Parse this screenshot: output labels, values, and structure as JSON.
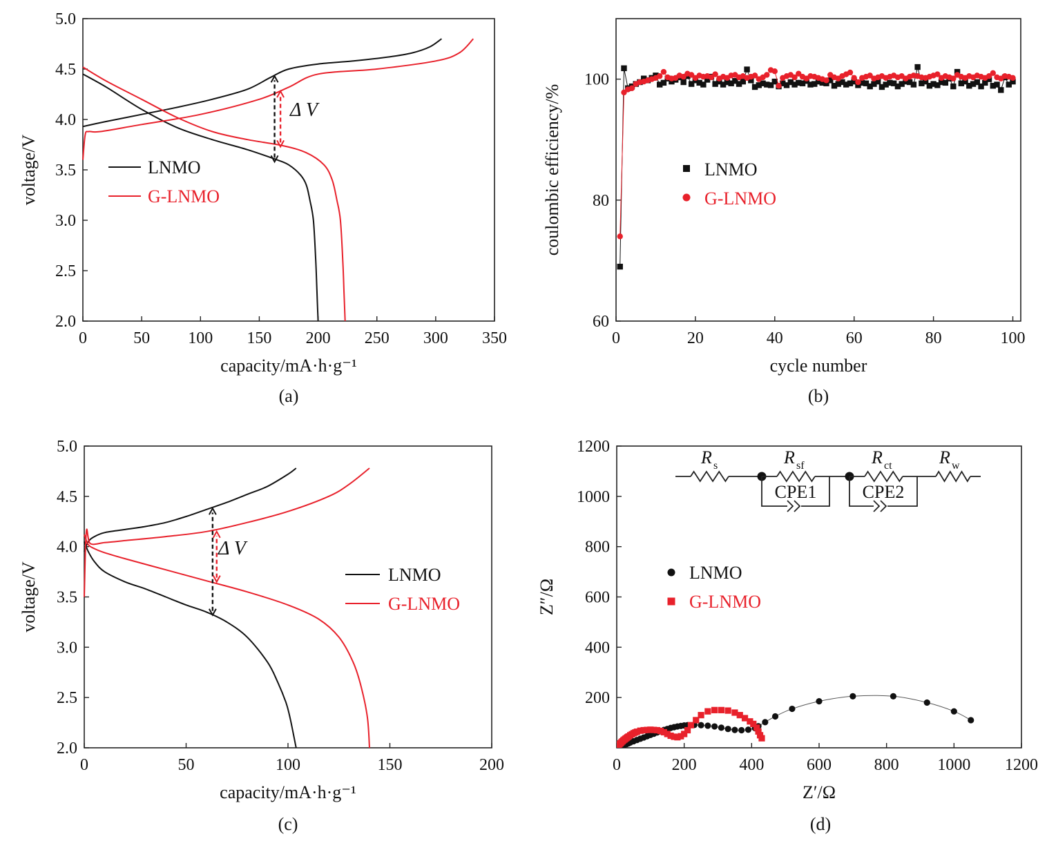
{
  "colors": {
    "lnmo": "#111111",
    "glnmo": "#e8212b",
    "axis": "#222222"
  },
  "chart_data": [
    {
      "type": "line",
      "panel": "(a)",
      "xlabel": "capacity/mA·h·g⁻¹",
      "ylabel": "voltage/V",
      "xlim": [
        0,
        350
      ],
      "ylim": [
        2.0,
        5.0
      ],
      "xticks": [
        0,
        50,
        100,
        150,
        200,
        250,
        300,
        350
      ],
      "yticks": [
        2.0,
        2.5,
        3.0,
        3.5,
        4.0,
        4.5,
        5.0
      ],
      "xtick_labels": [
        "0",
        "50",
        "100",
        "150",
        "200",
        "250",
        "300",
        "350"
      ],
      "ytick_labels": [
        "2.0",
        "2.5",
        "3.0",
        "3.5",
        "4.0",
        "4.5",
        "5.0"
      ],
      "legend": [
        "LNMO",
        "G-LNMO"
      ],
      "annotation": "Δ V",
      "series": [
        {
          "name": "LNMO (charge)",
          "color_key": "lnmo",
          "x": [
            0,
            20,
            50,
            80,
            110,
            140,
            160,
            175,
            200,
            230,
            260,
            280,
            295,
            305
          ],
          "y": [
            3.93,
            3.98,
            4.05,
            4.12,
            4.2,
            4.3,
            4.42,
            4.5,
            4.55,
            4.58,
            4.62,
            4.66,
            4.72,
            4.8
          ]
        },
        {
          "name": "LNMO (discharge)",
          "color_key": "lnmo",
          "x": [
            0,
            20,
            50,
            80,
            110,
            140,
            165,
            175,
            185,
            190,
            193,
            196,
            198,
            199,
            200
          ],
          "y": [
            4.45,
            4.32,
            4.1,
            3.92,
            3.8,
            3.7,
            3.6,
            3.55,
            3.45,
            3.35,
            3.2,
            3.0,
            2.6,
            2.3,
            2.0
          ]
        },
        {
          "name": "G-LNMO (charge)",
          "color_key": "glnmo",
          "x": [
            0,
            2,
            5,
            15,
            50,
            100,
            150,
            175,
            200,
            250,
            300,
            320,
            332
          ],
          "y": [
            3.6,
            3.85,
            3.88,
            3.88,
            3.95,
            4.05,
            4.2,
            4.32,
            4.45,
            4.5,
            4.58,
            4.66,
            4.8
          ]
        },
        {
          "name": "G-LNMO (discharge)",
          "color_key": "glnmo",
          "x": [
            0,
            20,
            50,
            80,
            110,
            140,
            170,
            190,
            205,
            212,
            216,
            219,
            221,
            222,
            223
          ],
          "y": [
            4.52,
            4.38,
            4.2,
            4.02,
            3.88,
            3.8,
            3.74,
            3.67,
            3.55,
            3.4,
            3.2,
            3.0,
            2.6,
            2.3,
            2.0
          ]
        }
      ],
      "arrows": [
        {
          "color_key": "lnmo",
          "x": 163,
          "y1": 3.58,
          "y2": 4.43
        },
        {
          "color_key": "glnmo",
          "x": 168,
          "y1": 3.73,
          "y2": 4.28
        }
      ]
    },
    {
      "type": "scatter",
      "panel": "(b)",
      "xlabel": "cycle number",
      "ylabel": "coulombic efficiency/%",
      "xlim": [
        0,
        102
      ],
      "ylim": [
        60,
        110
      ],
      "xticks": [
        0,
        20,
        40,
        60,
        80,
        100
      ],
      "yticks": [
        60,
        80,
        100
      ],
      "xtick_labels": [
        "0",
        "20",
        "40",
        "60",
        "80",
        "100"
      ],
      "ytick_labels": [
        "60",
        "80",
        "100"
      ],
      "legend": [
        "LNMO",
        "G-LNMO"
      ],
      "series": [
        {
          "name": "LNMO",
          "marker": "square",
          "color_key": "lnmo",
          "x": [
            1,
            2,
            3,
            4,
            5,
            6,
            7,
            8,
            9,
            10,
            11,
            12,
            13,
            14,
            15,
            16,
            17,
            18,
            19,
            20,
            21,
            22,
            23,
            24,
            25,
            26,
            27,
            28,
            29,
            30,
            31,
            32,
            33,
            34,
            35,
            36,
            37,
            38,
            39,
            40,
            41,
            42,
            43,
            44,
            45,
            46,
            47,
            48,
            49,
            50,
            51,
            52,
            53,
            54,
            55,
            56,
            57,
            58,
            59,
            60,
            61,
            62,
            63,
            64,
            65,
            66,
            67,
            68,
            69,
            70,
            71,
            72,
            73,
            74,
            75,
            76,
            77,
            78,
            79,
            80,
            81,
            82,
            83,
            84,
            85,
            86,
            87,
            88,
            89,
            90,
            91,
            92,
            93,
            94,
            95,
            96,
            97,
            98,
            99,
            100
          ],
          "y": [
            69,
            101.8,
            98.5,
            98.8,
            99.2,
            99.5,
            100.1,
            99.8,
            100.2,
            100.6,
            99.1,
            99.4,
            100.1,
            99.6,
            99.9,
            100.3,
            99.5,
            100.5,
            99.2,
            99.8,
            99.4,
            99.1,
            99.9,
            100.4,
            99.2,
            99.6,
            99.1,
            99.5,
            99.3,
            99.7,
            99.2,
            99.6,
            101.6,
            99.8,
            98.7,
            99,
            99.3,
            99.1,
            99,
            99.6,
            98.8,
            99.3,
            99,
            99.5,
            99.1,
            99.4,
            99.3,
            99.7,
            99.1,
            99.2,
            99.6,
            99.4,
            99.3,
            99.8,
            98.9,
            99.2,
            99.5,
            99.1,
            99.3,
            99.6,
            99,
            99.4,
            99.3,
            98.8,
            99.2,
            99.6,
            98.7,
            99.1,
            99.4,
            99.3,
            98.8,
            99.2,
            99.6,
            99.5,
            99.1,
            102,
            99.3,
            99.6,
            98.9,
            99.2,
            99,
            99.5,
            99.4,
            100.1,
            98.8,
            101.2,
            99.3,
            99.6,
            98.9,
            99.2,
            99.5,
            98.8,
            99.4,
            100,
            98.9,
            99.1,
            98.2,
            100.3,
            99.1,
            99.6
          ]
        },
        {
          "name": "G-LNMO",
          "marker": "circle",
          "color_key": "glnmo",
          "x": [
            1,
            2,
            3,
            4,
            5,
            6,
            7,
            8,
            9,
            10,
            11,
            12,
            13,
            14,
            15,
            16,
            17,
            18,
            19,
            20,
            21,
            22,
            23,
            24,
            25,
            26,
            27,
            28,
            29,
            30,
            31,
            32,
            33,
            34,
            35,
            36,
            37,
            38,
            39,
            40,
            41,
            42,
            43,
            44,
            45,
            46,
            47,
            48,
            49,
            50,
            51,
            52,
            53,
            54,
            55,
            56,
            57,
            58,
            59,
            60,
            61,
            62,
            63,
            64,
            65,
            66,
            67,
            68,
            69,
            70,
            71,
            72,
            73,
            74,
            75,
            76,
            77,
            78,
            79,
            80,
            81,
            82,
            83,
            84,
            85,
            86,
            87,
            88,
            89,
            90,
            91,
            92,
            93,
            94,
            95,
            96,
            97,
            98,
            99,
            100
          ],
          "y": [
            74,
            97.8,
            98.3,
            98.5,
            99.2,
            99.5,
            99.6,
            99.8,
            100,
            100.2,
            100.5,
            101.2,
            100.3,
            100.1,
            100.2,
            100.6,
            100.4,
            100.9,
            100.7,
            100.2,
            100.6,
            100.4,
            100.5,
            100.3,
            100.8,
            100.1,
            100.4,
            100.2,
            100.6,
            100.7,
            100.3,
            100.5,
            100.2,
            100.4,
            100.6,
            100,
            100.3,
            100.7,
            101.5,
            101.3,
            98.9,
            100.2,
            100.5,
            100.7,
            100.3,
            100.9,
            100.4,
            100.1,
            100.5,
            100.4,
            100.2,
            100,
            99.8,
            100.7,
            100.3,
            100.1,
            100.5,
            100.8,
            101.1,
            100.2,
            99.5,
            100.2,
            100.4,
            100.6,
            100.1,
            100.3,
            100.5,
            100.2,
            100.4,
            100.6,
            100.3,
            100.5,
            100.1,
            100.4,
            100.6,
            100.5,
            100.3,
            100.2,
            100.4,
            100.6,
            100.8,
            100.2,
            100.5,
            100.3,
            100.1,
            100.7,
            100.4,
            100.2,
            100.5,
            100.3,
            100.6,
            100.4,
            100.2,
            100.5,
            101,
            100.3,
            100.1,
            100.5,
            100.4,
            100.2
          ]
        }
      ]
    },
    {
      "type": "line",
      "panel": "(c)",
      "xlabel": "capacity/mA·h·g⁻¹",
      "ylabel": "voltage/V",
      "xlim": [
        0,
        200
      ],
      "ylim": [
        2.0,
        5.0
      ],
      "xticks": [
        0,
        50,
        100,
        150,
        200
      ],
      "yticks": [
        2.0,
        2.5,
        3.0,
        3.5,
        4.0,
        4.5,
        5.0
      ],
      "xtick_labels": [
        "0",
        "50",
        "100",
        "150",
        "200"
      ],
      "ytick_labels": [
        "2.0",
        "2.5",
        "3.0",
        "3.5",
        "4.0",
        "4.5",
        "5.0"
      ],
      "legend": [
        "LNMO",
        "G-LNMO"
      ],
      "annotation": "Δ V",
      "series": [
        {
          "name": "LNMO (charge)",
          "color_key": "lnmo",
          "x": [
            0,
            2,
            5,
            10,
            20,
            30,
            40,
            50,
            60,
            70,
            80,
            90,
            100,
            104
          ],
          "y": [
            3.95,
            4.05,
            4.1,
            4.14,
            4.17,
            4.2,
            4.24,
            4.3,
            4.37,
            4.44,
            4.52,
            4.6,
            4.72,
            4.78
          ]
        },
        {
          "name": "LNMO (discharge)",
          "color_key": "lnmo",
          "x": [
            0,
            2,
            5,
            10,
            20,
            30,
            40,
            50,
            60,
            70,
            80,
            90,
            95,
            99,
            101,
            103,
            104
          ],
          "y": [
            4.05,
            3.95,
            3.85,
            3.75,
            3.65,
            3.58,
            3.5,
            3.42,
            3.35,
            3.25,
            3.1,
            2.85,
            2.65,
            2.45,
            2.3,
            2.1,
            2.0
          ]
        },
        {
          "name": "G-LNMO (charge)",
          "color_key": "glnmo",
          "x": [
            0,
            1,
            3,
            10,
            20,
            40,
            60,
            80,
            100,
            120,
            130,
            140
          ],
          "y": [
            3.5,
            4.15,
            4.03,
            4.04,
            4.06,
            4.1,
            4.15,
            4.24,
            4.35,
            4.5,
            4.62,
            4.78
          ]
        },
        {
          "name": "G-LNMO (discharge)",
          "color_key": "glnmo",
          "x": [
            0,
            2,
            5,
            10,
            20,
            40,
            60,
            80,
            100,
            115,
            125,
            132,
            136,
            139,
            140
          ],
          "y": [
            4.12,
            4.02,
            3.98,
            3.94,
            3.88,
            3.77,
            3.66,
            3.55,
            3.42,
            3.28,
            3.1,
            2.85,
            2.6,
            2.3,
            2.0
          ]
        }
      ],
      "arrows": [
        {
          "color_key": "lnmo",
          "x": 63,
          "y1": 3.32,
          "y2": 4.38
        },
        {
          "color_key": "glnmo",
          "x": 65,
          "y1": 3.65,
          "y2": 4.15
        }
      ]
    },
    {
      "type": "scatter",
      "panel": "(d)",
      "xlabel": "Z′/Ω",
      "ylabel": "Z″/Ω",
      "xlim": [
        0,
        1200
      ],
      "ylim": [
        0,
        1200
      ],
      "xticks": [
        0,
        200,
        400,
        600,
        800,
        1000,
        1200
      ],
      "yticks": [
        200,
        400,
        600,
        800,
        1000,
        1200
      ],
      "xtick_labels": [
        "0",
        "200",
        "400",
        "600",
        "800",
        "1000",
        "1200"
      ],
      "ytick_labels": [
        "200",
        "400",
        "600",
        "800",
        "1000",
        "1200"
      ],
      "legend": [
        "LNMO",
        "G-LNMO"
      ],
      "circuit_labels": {
        "rs": "R",
        "rs_sub": "s",
        "rsf": "R",
        "rsf_sub": "sf",
        "rct": "R",
        "rct_sub": "ct",
        "rw": "R",
        "rw_sub": "w",
        "cpe1": "CPE1",
        "cpe2": "CPE2"
      },
      "series": [
        {
          "name": "LNMO",
          "marker": "circle",
          "color_key": "lnmo",
          "x": [
            5,
            10,
            15,
            20,
            25,
            30,
            35,
            40,
            50,
            60,
            70,
            80,
            90,
            100,
            110,
            120,
            130,
            140,
            150,
            160,
            170,
            180,
            190,
            200,
            210,
            230,
            250,
            270,
            290,
            310,
            330,
            350,
            370,
            390,
            410,
            420,
            440,
            470,
            520,
            600,
            700,
            820,
            920,
            1000,
            1050
          ],
          "y": [
            3,
            5,
            8,
            10,
            13,
            15,
            18,
            21,
            26,
            31,
            36,
            41,
            46,
            51,
            56,
            61,
            66,
            71,
            75,
            79,
            82,
            85,
            87,
            89,
            90,
            91,
            90,
            88,
            85,
            80,
            75,
            71,
            70,
            72,
            78,
            86,
            102,
            125,
            155,
            185,
            205,
            205,
            180,
            145,
            110
          ]
        },
        {
          "name": "G-LNMO",
          "marker": "square",
          "color_key": "glnmo",
          "x": [
            5,
            8,
            11,
            14,
            17,
            20,
            23,
            26,
            29,
            32,
            35,
            40,
            45,
            50,
            55,
            60,
            70,
            80,
            90,
            100,
            110,
            120,
            130,
            140,
            150,
            160,
            170,
            180,
            190,
            200,
            210,
            220,
            235,
            250,
            270,
            290,
            310,
            330,
            350,
            365,
            380,
            395,
            405,
            415,
            420,
            425,
            430
          ],
          "y": [
            10,
            14,
            18,
            22,
            26,
            30,
            33,
            36,
            39,
            42,
            45,
            50,
            54,
            58,
            61,
            64,
            68,
            70,
            71,
            72,
            71,
            70,
            67,
            62,
            55,
            48,
            44,
            42,
            46,
            55,
            70,
            90,
            110,
            130,
            145,
            150,
            150,
            148,
            140,
            130,
            118,
            105,
            95,
            80,
            65,
            50,
            38
          ]
        }
      ]
    }
  ]
}
